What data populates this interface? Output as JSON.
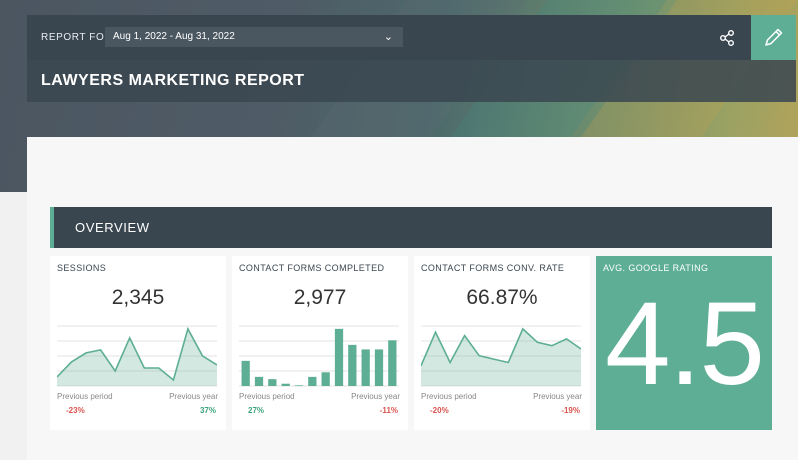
{
  "header": {
    "report_for_label": "REPORT FOR",
    "date_range": "Aug 1, 2022 - Aug 31, 2022",
    "title": "LAWYERS MARKETING REPORT",
    "share_icon": "share-icon",
    "edit_icon": "pencil-icon"
  },
  "overview": {
    "title": "OVERVIEW"
  },
  "cards": [
    {
      "label": "SESSIONS",
      "value": "2,345",
      "prev_period_label": "Previous period",
      "prev_year_label": "Previous year",
      "prev_period_change": "-23%",
      "prev_year_change": "37%",
      "chart_data": {
        "type": "area",
        "values": [
          3,
          8,
          11,
          12,
          5,
          16,
          6,
          6,
          2,
          19,
          10,
          7
        ]
      }
    },
    {
      "label": "CONTACT FORMS COMPLETED",
      "value": "2,977",
      "prev_period_label": "Previous period",
      "prev_year_label": "Previous year",
      "prev_period_change": "27%",
      "prev_year_change": "-11%",
      "chart_data": {
        "type": "bar",
        "values": [
          11,
          4,
          3,
          1,
          0.3,
          4,
          6,
          25,
          18,
          16,
          16,
          20
        ]
      }
    },
    {
      "label": "CONTACT FORMS CONV. RATE",
      "value": "66.87%",
      "prev_period_label": "Previous period",
      "prev_year_label": "Previous year",
      "prev_period_change": "-20%",
      "prev_year_change": "-19%",
      "chart_data": {
        "type": "area",
        "values": [
          6,
          16,
          7,
          15,
          9,
          8,
          7,
          17,
          13,
          12,
          14,
          11
        ]
      }
    }
  ],
  "rating": {
    "label": "AVG. GOOGLE RATING",
    "value": "4.5"
  },
  "colors": {
    "accent": "#5dae95",
    "dark": "#394650",
    "negative": "#d9534f",
    "positive": "#3aa57c"
  }
}
